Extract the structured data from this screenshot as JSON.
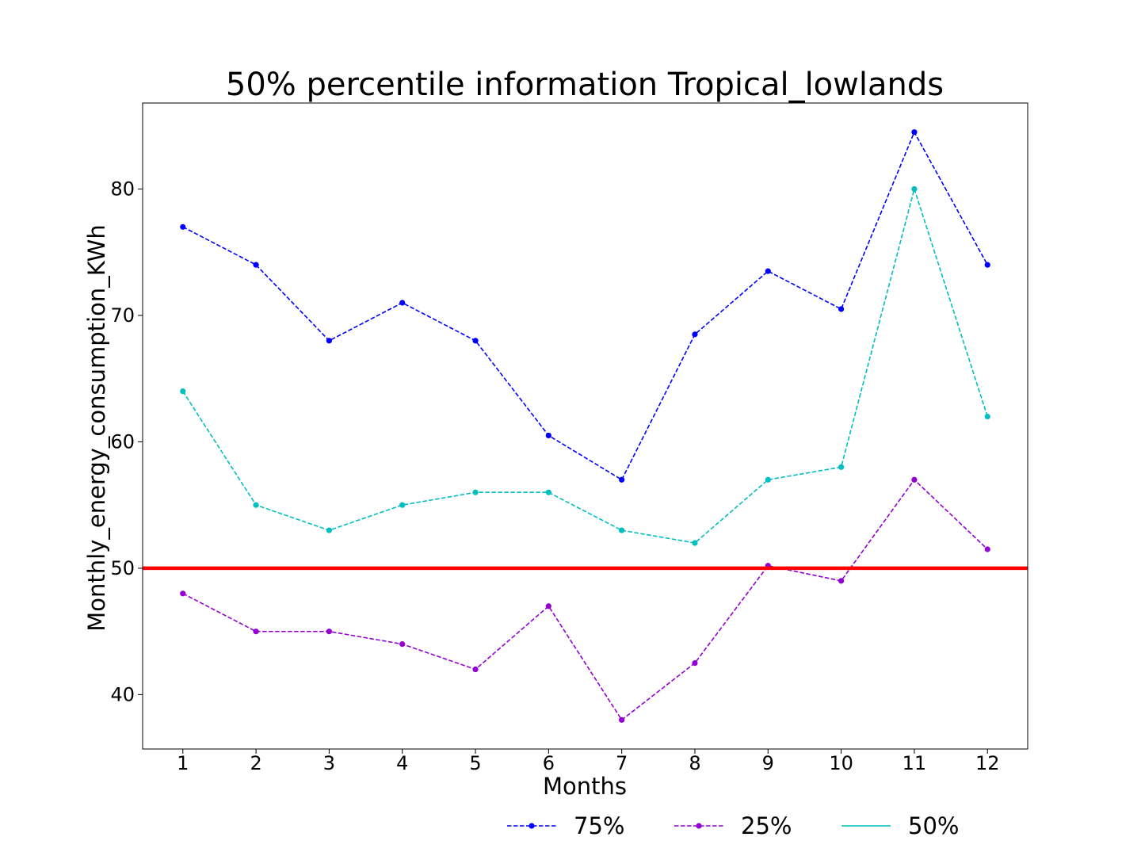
{
  "chart_data": {
    "type": "line",
    "title": "50% percentile information Tropical_lowlands",
    "xlabel": "Months",
    "ylabel": "Monthly_energy_consumption_KWh",
    "x": [
      1,
      2,
      3,
      4,
      5,
      6,
      7,
      8,
      9,
      10,
      11,
      12
    ],
    "x_tick_labels": [
      "1",
      "2",
      "3",
      "4",
      "5",
      "6",
      "7",
      "8",
      "9",
      "10",
      "11",
      "12"
    ],
    "y_ticks": [
      40,
      50,
      60,
      70,
      80
    ],
    "y_tick_labels": [
      "40",
      "50",
      "60",
      "70",
      "80"
    ],
    "xlim": [
      0.45,
      12.55
    ],
    "ylim": [
      35.7,
      86.8
    ],
    "grid": false,
    "legend_placement": "bottom-right, below axes",
    "series": [
      {
        "name": "75%",
        "color": "#0000ff",
        "linestyle": "dashed",
        "marker": "circle",
        "values": [
          77,
          74,
          68,
          71,
          68,
          60.5,
          57,
          68.5,
          73.5,
          70.5,
          84.5,
          74
        ]
      },
      {
        "name": "25%",
        "color": "#9400d3",
        "linestyle": "dashed",
        "marker": "circle",
        "values": [
          48,
          45,
          45,
          44,
          42,
          47,
          38,
          42.5,
          50.2,
          49,
          57,
          51.5
        ]
      },
      {
        "name": "50%",
        "color": "#00bfbf",
        "linestyle": "dashed",
        "marker": "circle",
        "values": [
          64,
          55,
          53,
          55,
          56,
          56,
          53,
          52,
          57,
          58,
          80,
          62
        ]
      }
    ],
    "reference_line": {
      "y": 50,
      "color": "#ff0000"
    },
    "legend": [
      {
        "label": "75%",
        "color": "#0000ff",
        "style": "dashed-marker"
      },
      {
        "label": "25%",
        "color": "#9400d3",
        "style": "dashed-marker"
      },
      {
        "label": "50%",
        "color": "#00bfbf",
        "style": "solid"
      }
    ]
  }
}
